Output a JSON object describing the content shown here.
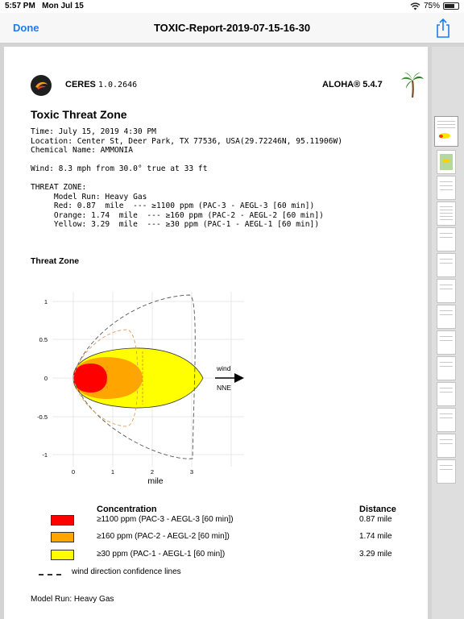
{
  "status_bar": {
    "time": "5:57 PM",
    "date": "Mon Jul 15",
    "wifi_icon": "wifi-icon",
    "battery_percent": "75%",
    "battery_level": 0.75
  },
  "nav": {
    "done_label": "Done",
    "title": "TOXIC-Report-2019-07-15-16-30",
    "share_icon": "share-icon"
  },
  "report": {
    "brand": "CERES",
    "brand_version": "1.0.2646",
    "aloha": "ALOHA® 5.4.7",
    "title": "Toxic Threat Zone",
    "time_line": "Time: July 15, 2019 4:30 PM",
    "location_line": "Location: Center St, Deer Park, TX 77536, USA(29.72246N, 95.11906W)",
    "chemical_line": "Chemical Name: AMMONIA",
    "wind_line": "Wind: 8.3 mph from 30.0° true at 33 ft",
    "tz_heading": "THREAT ZONE:",
    "tz_model": "     Model Run: Heavy Gas",
    "tz_red": "     Red: 0.87  mile  --- ≥1100 ppm (PAC-3 - AEGL-3 [60 min])",
    "tz_orange": "     Orange: 1.74  mile  --- ≥160 ppm (PAC-2 - AEGL-2 [60 min])",
    "tz_yellow": "     Yellow: 3.29  mile  --- ≥30 ppm (PAC-1 - AEGL-1 [60 min])",
    "section_title": "Threat Zone"
  },
  "plot": {
    "x_ticks": [
      "0",
      "1",
      "2",
      "3"
    ],
    "y_ticks": [
      "1",
      "0.5",
      "0",
      "-0.5",
      "-1"
    ],
    "xlabel": "mile",
    "wind_label_1": "wind",
    "wind_label_2": "NNE"
  },
  "legend": {
    "concentration_header": "Concentration",
    "distance_header": "Distance",
    "items": [
      {
        "label": "≥1100 ppm (PAC-3 - AEGL-3 [60 min])",
        "distance": "0.87  mile",
        "color": "#ff0000"
      },
      {
        "label": "≥160 ppm (PAC-2 - AEGL-2 [60 min])",
        "distance": "1.74  mile",
        "color": "#ffa500"
      },
      {
        "label": "≥30 ppm (PAC-1 - AEGL-1 [60 min])",
        "distance": "3.29  mile",
        "color": "#ffff00"
      }
    ],
    "confidence_label": "wind direction confidence lines"
  },
  "footer": {
    "model_run": "Model Run: Heavy Gas"
  }
}
